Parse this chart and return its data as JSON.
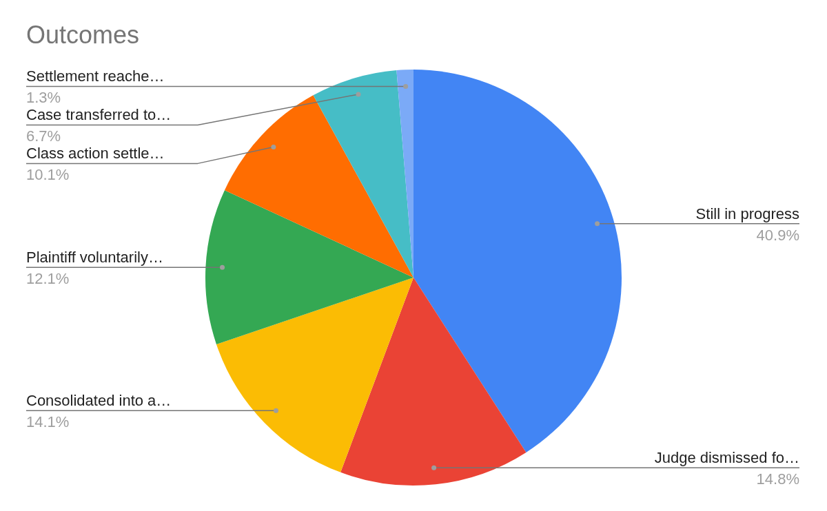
{
  "chart_data": {
    "type": "pie",
    "title": "Outcomes",
    "categories": [
      "Still in progress",
      "Judge dismissed fo…",
      "Consolidated into a…",
      "Plaintiff voluntarily…",
      "Class action settle…",
      "Case transferred to…",
      "Settlement reache…"
    ],
    "values": [
      40.9,
      14.8,
      14.1,
      12.1,
      10.1,
      6.7,
      1.3
    ],
    "value_labels": [
      "40.9%",
      "14.8%",
      "14.1%",
      "12.1%",
      "10.1%",
      "6.7%",
      "1.3%"
    ],
    "colors": [
      "#4285f4",
      "#ea4335",
      "#fbbc04",
      "#34a853",
      "#ff6d01",
      "#46bdc6",
      "#7baaf7"
    ],
    "legend": false
  }
}
